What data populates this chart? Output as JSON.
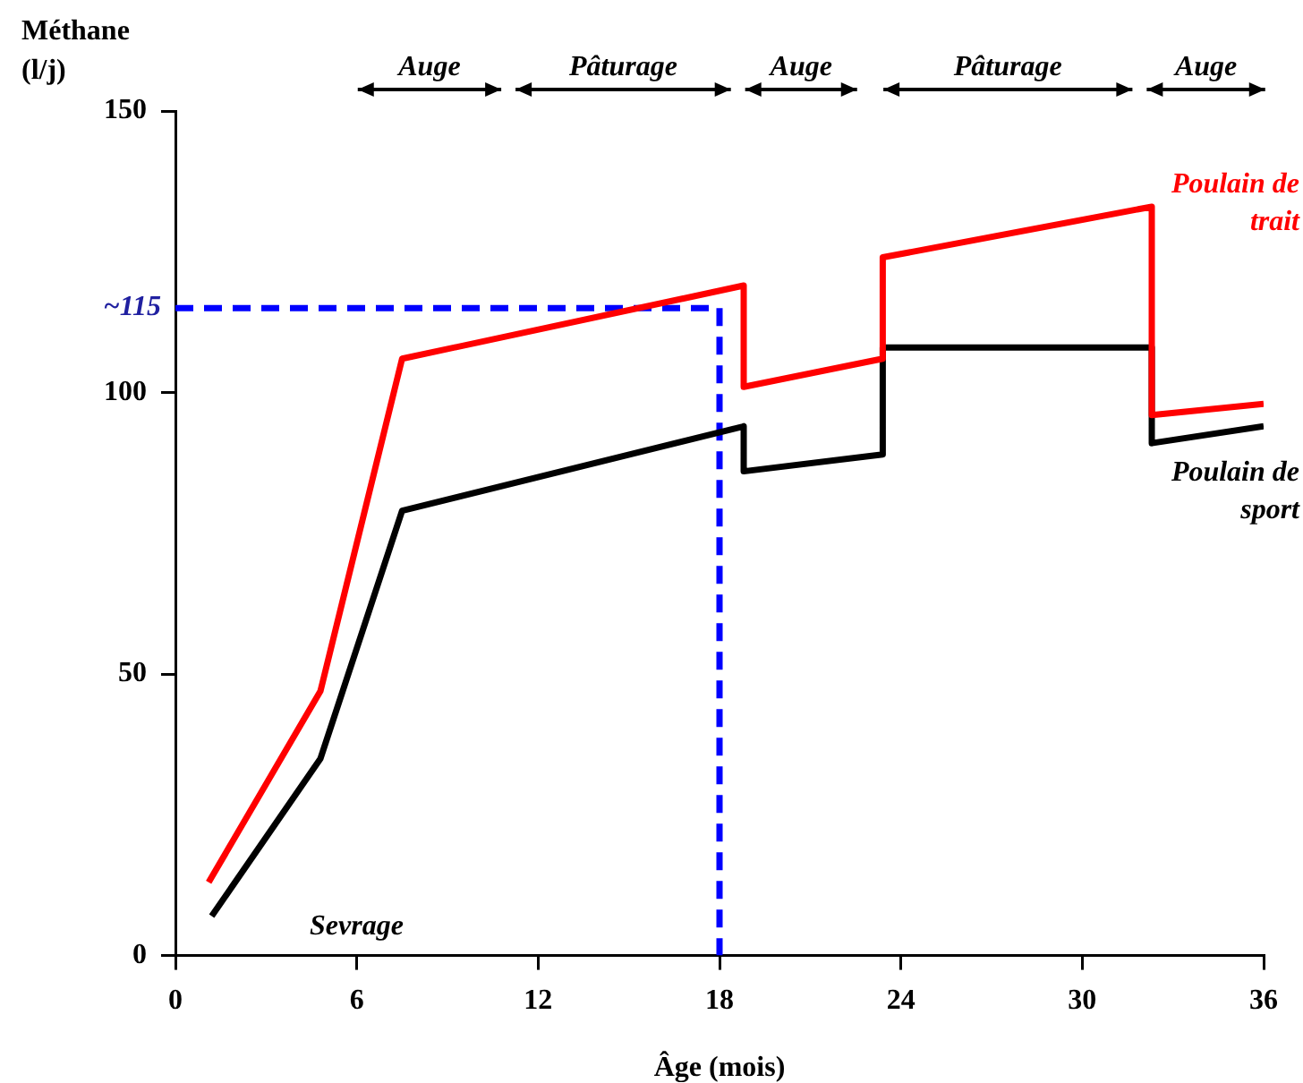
{
  "chart_data": {
    "type": "line",
    "ylabel": "Méthane (l/j)",
    "xlabel": "Âge (mois)",
    "xlim": [
      0,
      36
    ],
    "xticks": [
      0,
      6,
      12,
      18,
      24,
      30,
      36
    ],
    "ylim": [
      0,
      150
    ],
    "yticks": [
      0,
      50,
      100,
      150
    ],
    "grid": false,
    "legend": false,
    "marker": "none",
    "line_style": "solid",
    "series": [
      {
        "name": "Poulain de trait",
        "color": "#ff0000",
        "x": [
          1.1,
          4.8,
          7.5,
          18.8,
          18.8,
          23.4,
          23.4,
          32.3,
          32.3,
          36
        ],
        "values": [
          13,
          47,
          106,
          119,
          101,
          106,
          124,
          133,
          96,
          98
        ]
      },
      {
        "name": "Poulain de sport",
        "color": "#000000",
        "x": [
          1.2,
          4.8,
          7.5,
          18.8,
          18.8,
          23.4,
          23.4,
          32.3,
          32.3,
          36
        ],
        "values": [
          7,
          35,
          79,
          94,
          86,
          89,
          108,
          108,
          91,
          94
        ]
      },
      {
        "color": "#0000ff",
        "line_style": "dashed",
        "x": [
          0,
          18,
          18
        ],
        "values": [
          115,
          115,
          0
        ]
      }
    ],
    "annotations": [
      "Auge",
      "Pâturage",
      "Auge",
      "Pâturage",
      "Auge",
      {
        "text": "~115",
        "x": 0,
        "y": 115
      },
      "Sevrage"
    ]
  }
}
